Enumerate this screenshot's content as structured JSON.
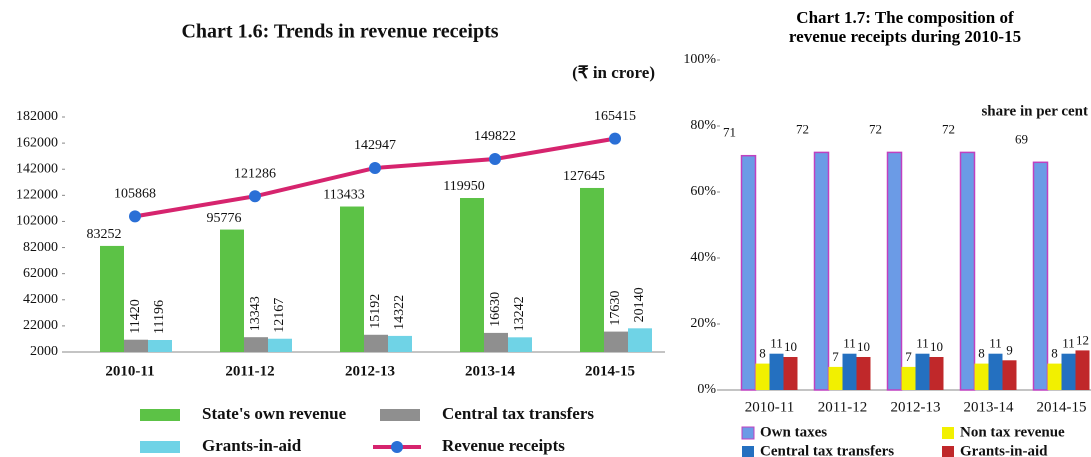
{
  "chart_data": [
    {
      "type": "bar",
      "title": "Chart 1.6: Trends in revenue receipts",
      "subtitle": "(₹ in crore)",
      "categories": [
        "2010-11",
        "2011-12",
        "2012-13",
        "2013-14",
        "2014-15"
      ],
      "series": [
        {
          "name": "State's own revenue",
          "color": "#5cc246",
          "values": [
            83252,
            95776,
            113433,
            119950,
            127645
          ]
        },
        {
          "name": "Central tax transfers",
          "color": "#8f8f8f",
          "values": [
            11420,
            13343,
            15192,
            16630,
            17630
          ]
        },
        {
          "name": "Grants-in-aid",
          "color": "#6fd3e6",
          "values": [
            11196,
            12167,
            14322,
            13242,
            20140
          ]
        },
        {
          "name": "Revenue receipts",
          "type": "line",
          "color": "#d6246e",
          "marker_color": "#2a6fd6",
          "values": [
            105868,
            121286,
            142947,
            149822,
            165415
          ]
        }
      ],
      "ylim": [
        2000,
        182000
      ],
      "yticks": [
        2000,
        22000,
        42000,
        62000,
        82000,
        102000,
        122000,
        142000,
        162000,
        182000
      ],
      "grid": false
    },
    {
      "type": "bar",
      "title": "Chart 1.7: The composition of revenue receipts during 2010-15",
      "subtitle": "share in per cent",
      "categories": [
        "2010-11",
        "2011-12",
        "2012-13",
        "2013-14",
        "2014-15"
      ],
      "series": [
        {
          "name": "Own taxes",
          "color": "#6b9be6",
          "edge_color": "#c040c0",
          "values": [
            71,
            72,
            72,
            72,
            69
          ]
        },
        {
          "name": "Non tax revenue",
          "color": "#f2f000",
          "values": [
            8,
            7,
            7,
            8,
            8
          ]
        },
        {
          "name": "Central tax transfers",
          "color": "#2470c0",
          "values": [
            11,
            11,
            11,
            11,
            11
          ]
        },
        {
          "name": "Grants-in-aid",
          "color": "#c0282a",
          "values": [
            10,
            10,
            10,
            9,
            12
          ]
        }
      ],
      "ylim": [
        0,
        100
      ],
      "yticks": [
        {
          "value": 0,
          "label": "0%"
        },
        {
          "value": 20,
          "label": "20%"
        },
        {
          "value": 40,
          "label": "40%"
        },
        {
          "value": 60,
          "label": "60%"
        },
        {
          "value": 80,
          "label": "80%"
        },
        {
          "value": 100,
          "label": "100%"
        }
      ],
      "grid": false
    }
  ]
}
